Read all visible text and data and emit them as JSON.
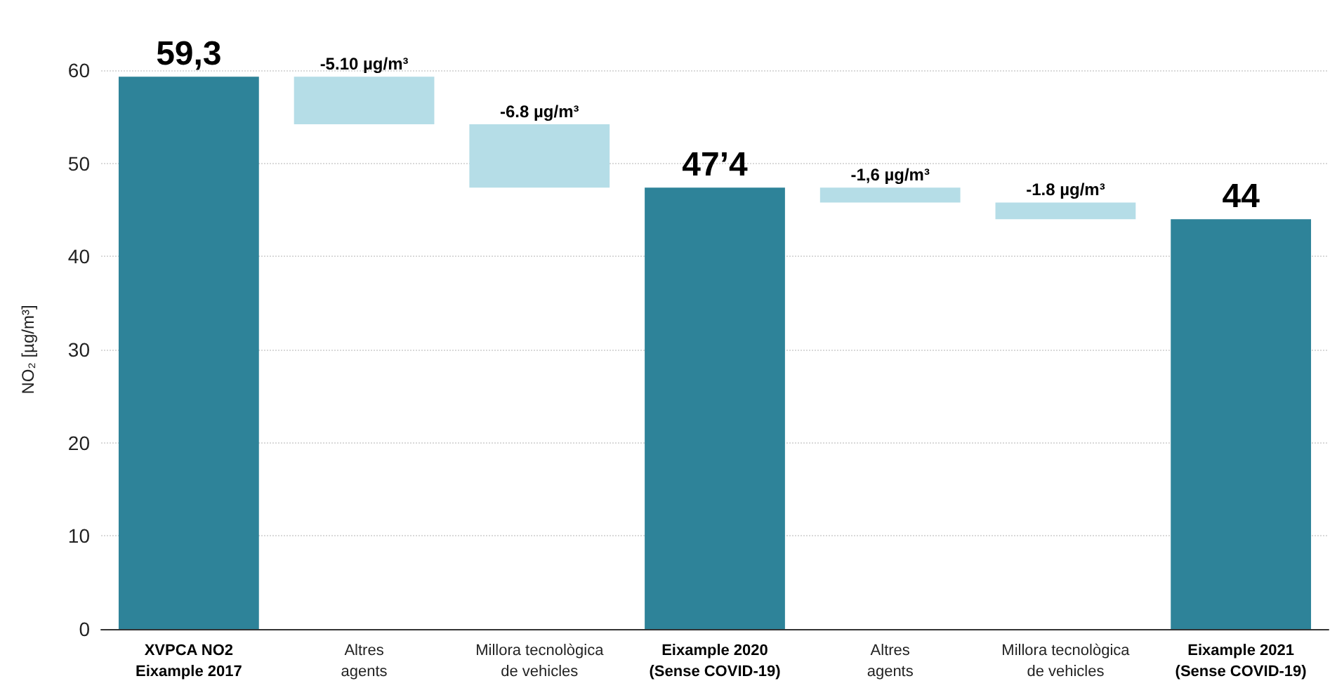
{
  "chart_data": {
    "type": "bar",
    "ylabel": "NO₂ [µg/m³]",
    "categories": [
      "XVPCA NO2\nEixample 2017",
      "Altres\nagents",
      "Millora tecnològica\nde vehicles",
      "Eixample 2020\n(Sense COVID-19)",
      "Altres\nagents",
      "Millora tecnològica\nde vehicles",
      "Eixample 2021\n(Sense COVID-19)"
    ],
    "values": [
      59.3,
      -5.1,
      -6.8,
      47.4,
      -1.6,
      -1.8,
      44
    ],
    "base": [
      0,
      59.3,
      54.2,
      0,
      47.4,
      45.8,
      0
    ],
    "colors": [
      "#2e8399",
      "#b5dde7",
      "#b5dde7",
      "#2e8399",
      "#b5dde7",
      "#b5dde7",
      "#2e8399"
    ],
    "value_labels": [
      "59,3",
      "-5.10 µg/m³",
      "-6.8 µg/m³",
      "47’4",
      "-1,6 µg/m³",
      "-1.8 µg/m³",
      "44"
    ],
    "ylim": [
      0,
      60
    ],
    "yticks": [
      0,
      10,
      20,
      30,
      40,
      50,
      60
    ],
    "grid": "y"
  }
}
